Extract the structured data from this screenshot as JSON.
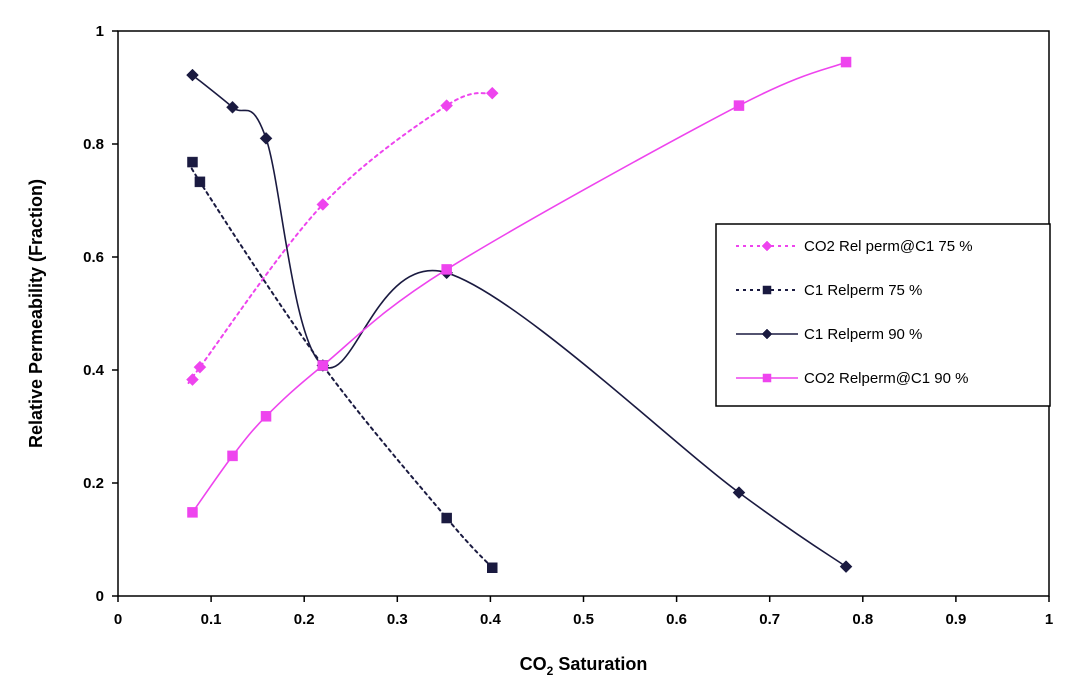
{
  "chart_data": {
    "type": "line",
    "title": "",
    "xlabel": "CO2 Saturation",
    "xlabel_parts": {
      "main": "CO",
      "sub": "2",
      "rest": " Saturation"
    },
    "ylabel": "Relative Permeability (Fraction)",
    "xlim": [
      0,
      1
    ],
    "ylim": [
      0,
      1
    ],
    "x_ticks": [
      "0",
      "0.1",
      "0.2",
      "0.3",
      "0.4",
      "0.5",
      "0.6",
      "0.7",
      "0.8",
      "0.9",
      "1"
    ],
    "y_ticks": [
      "0",
      "0.2",
      "0.4",
      "0.6",
      "0.8",
      "1"
    ],
    "grid": false,
    "legend_position": "right",
    "series": [
      {
        "name": "CO2 Rel perm@C1 75 %",
        "color": "#ee44ee",
        "line_style": "dotted",
        "marker": "diamond",
        "x": [
          0.08,
          0.088,
          0.22,
          0.353,
          0.402
        ],
        "y": [
          0.383,
          0.405,
          0.693,
          0.868,
          0.89
        ]
      },
      {
        "name": "C1 Relperm 75 %",
        "color": "#1a1a40",
        "line_style": "dotted",
        "marker": "square",
        "x": [
          0.08,
          0.088,
          0.22,
          0.353,
          0.402
        ],
        "y": [
          0.768,
          0.733,
          0.408,
          0.138,
          0.05
        ]
      },
      {
        "name": "C1 Relperm 90 %",
        "color": "#1a1a40",
        "line_style": "solid",
        "marker": "diamond",
        "x": [
          0.08,
          0.123,
          0.159,
          0.22,
          0.353,
          0.667,
          0.782
        ],
        "y": [
          0.922,
          0.865,
          0.81,
          0.408,
          0.572,
          0.183,
          0.052
        ]
      },
      {
        "name": "CO2 Relperm@C1 90 %",
        "color": "#ee44ee",
        "line_style": "solid",
        "marker": "square",
        "x": [
          0.08,
          0.123,
          0.159,
          0.22,
          0.353,
          0.667,
          0.782
        ],
        "y": [
          0.148,
          0.248,
          0.318,
          0.408,
          0.578,
          0.868,
          0.945
        ]
      }
    ]
  }
}
